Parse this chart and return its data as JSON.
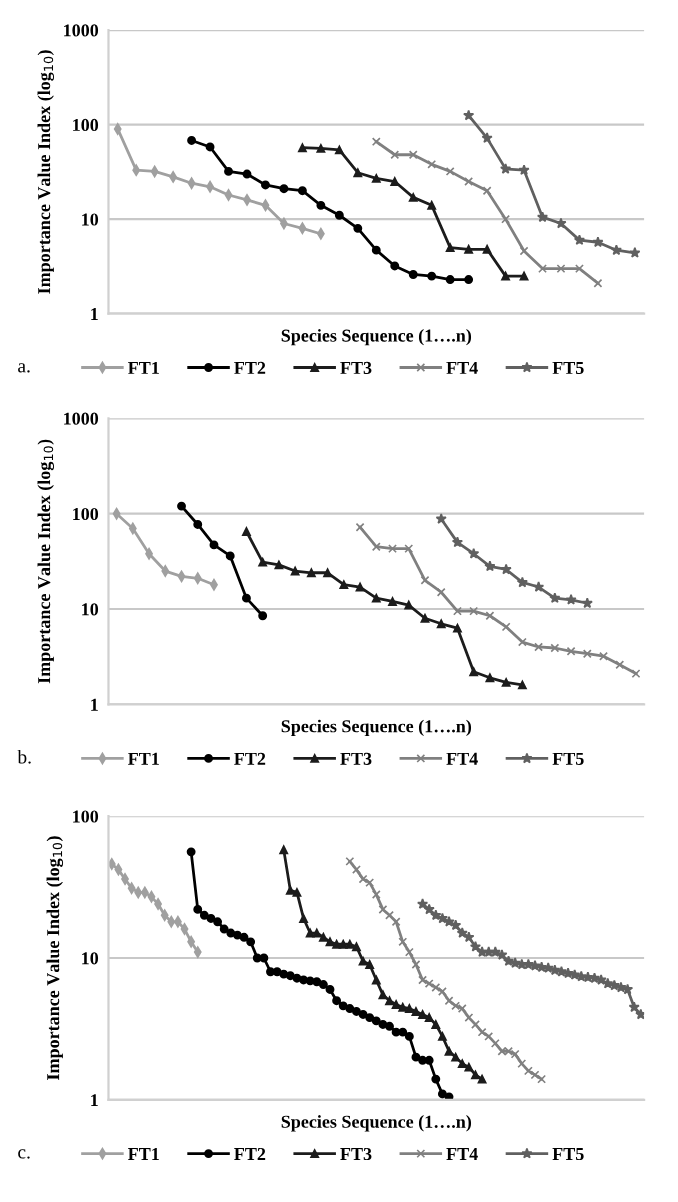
{
  "chart_data": [
    {
      "type": "line",
      "xlabel": "Species Sequence (1….n)",
      "ylabel": "Importance Value Index (log$_{10}$)",
      "annotations": [
        "a."
      ],
      "log": true,
      "grid": "y",
      "legend": "bottom",
      "categories": [
        null,
        null,
        null,
        null,
        null,
        null,
        null,
        null,
        null,
        null,
        null,
        null,
        null,
        null,
        null,
        null,
        null,
        null,
        null,
        null,
        null,
        null,
        null,
        null,
        null,
        null,
        null,
        null,
        null
      ],
      "ylim": [
        1,
        1000
      ],
      "yticks": [
        1,
        10,
        100,
        1000
      ],
      "series": [
        {
          "name": "FT1",
          "color": "#a0a0a0",
          "marker": "diamond",
          "values": [
            90,
            33,
            32,
            28,
            24,
            22,
            18,
            16,
            14,
            9,
            8,
            7,
            null,
            null,
            null,
            null,
            null,
            null,
            null,
            null,
            null,
            null,
            null,
            null,
            null,
            null,
            null,
            null,
            null
          ]
        },
        {
          "name": "FT2",
          "color": "#000000",
          "marker": "circle",
          "values": [
            null,
            null,
            null,
            null,
            68,
            58,
            32,
            30,
            23,
            21,
            20,
            14,
            11,
            8,
            4.7,
            3.2,
            2.6,
            2.5,
            2.3,
            2.3,
            null,
            null,
            null,
            null,
            null,
            null,
            null,
            null,
            null
          ]
        },
        {
          "name": "FT3",
          "color": "#1c1c1c",
          "marker": "triangle",
          "values": [
            null,
            null,
            null,
            null,
            null,
            null,
            null,
            null,
            null,
            null,
            57,
            56,
            54,
            31,
            27,
            25,
            17,
            14,
            5,
            4.8,
            4.8,
            2.5,
            2.5,
            null,
            null,
            null,
            null,
            null,
            null
          ]
        },
        {
          "name": "FT4",
          "color": "#808080",
          "marker": "cross",
          "values": [
            null,
            null,
            null,
            null,
            null,
            null,
            null,
            null,
            null,
            null,
            null,
            null,
            null,
            null,
            66,
            48,
            48,
            38,
            32,
            25,
            20,
            10,
            4.6,
            3,
            3,
            3,
            2.1,
            null,
            null
          ]
        },
        {
          "name": "FT5",
          "color": "#606060",
          "marker": "star",
          "values": [
            null,
            null,
            null,
            null,
            null,
            null,
            null,
            null,
            null,
            null,
            null,
            null,
            null,
            null,
            null,
            null,
            null,
            null,
            null,
            125,
            72,
            34,
            33,
            10.5,
            9,
            6,
            5.7,
            4.7,
            4.4
          ]
        }
      ]
    },
    {
      "type": "line",
      "xlabel": "Species Sequence (1….n)",
      "ylabel": "Importance Value Index (log$_{10}$)",
      "annotations": [
        "b."
      ],
      "log": true,
      "grid": "y",
      "legend": "bottom",
      "categories": [
        null,
        null,
        null,
        null,
        null,
        null,
        null,
        null,
        null,
        null,
        null,
        null,
        null,
        null,
        null,
        null,
        null,
        null,
        null,
        null,
        null,
        null,
        null,
        null,
        null,
        null,
        null,
        null,
        null,
        null,
        null,
        null,
        null
      ],
      "ylim": [
        1,
        1000
      ],
      "yticks": [
        1,
        10,
        100,
        1000
      ],
      "series": [
        {
          "name": "FT1",
          "color": "#a0a0a0",
          "marker": "diamond",
          "values": [
            100,
            70,
            38,
            25,
            22,
            21,
            18,
            null,
            null,
            null,
            null,
            null,
            null,
            null,
            null,
            null,
            null,
            null,
            null,
            null,
            null,
            null,
            null,
            null,
            null,
            null,
            null,
            null,
            null,
            null,
            null,
            null,
            null
          ]
        },
        {
          "name": "FT2",
          "color": "#000000",
          "marker": "circle",
          "values": [
            null,
            null,
            null,
            null,
            120,
            77,
            47,
            36,
            13,
            8.5,
            null,
            null,
            null,
            null,
            null,
            null,
            null,
            null,
            null,
            null,
            null,
            null,
            null,
            null,
            null,
            null,
            null,
            null,
            null,
            null,
            null,
            null,
            null
          ]
        },
        {
          "name": "FT3",
          "color": "#1c1c1c",
          "marker": "triangle",
          "values": [
            null,
            null,
            null,
            null,
            null,
            null,
            null,
            null,
            65,
            31,
            29,
            25,
            24,
            24,
            18,
            17,
            13,
            12,
            11,
            8,
            7,
            6.3,
            2.2,
            1.9,
            1.7,
            1.6,
            null,
            null,
            null,
            null,
            null,
            null,
            null
          ]
        },
        {
          "name": "FT4",
          "color": "#808080",
          "marker": "cross",
          "values": [
            null,
            null,
            null,
            null,
            null,
            null,
            null,
            null,
            null,
            null,
            null,
            null,
            null,
            null,
            null,
            72,
            45,
            43,
            43,
            20,
            15,
            9.5,
            9.5,
            8.5,
            6.5,
            4.5,
            4,
            3.9,
            3.6,
            3.4,
            3.2,
            2.6,
            2.1
          ]
        },
        {
          "name": "FT5",
          "color": "#606060",
          "marker": "star",
          "values": [
            null,
            null,
            null,
            null,
            null,
            null,
            null,
            null,
            null,
            null,
            null,
            null,
            null,
            null,
            null,
            null,
            null,
            null,
            null,
            null,
            88,
            50,
            38,
            28,
            26,
            19,
            17,
            13,
            12.5,
            11.5,
            null,
            null,
            null
          ]
        }
      ]
    },
    {
      "type": "line",
      "xlabel": "Species Sequence (1….n)",
      "ylabel": "Importance Value Index (log$_{10}$)",
      "annotations": [
        "c."
      ],
      "log": true,
      "grid": "y",
      "legend": "bottom",
      "categories": [
        null,
        null,
        null,
        null,
        null,
        null,
        null,
        null,
        null,
        null,
        null,
        null,
        null,
        null,
        null,
        null,
        null,
        null,
        null,
        null,
        null,
        null,
        null,
        null,
        null,
        null,
        null,
        null,
        null,
        null,
        null,
        null,
        null,
        null,
        null,
        null,
        null,
        null,
        null,
        null,
        null,
        null,
        null,
        null,
        null,
        null,
        null,
        null,
        null,
        null,
        null,
        null,
        null,
        null,
        null,
        null,
        null,
        null,
        null,
        null,
        null,
        null,
        null,
        null,
        null,
        null,
        null,
        null,
        null,
        null,
        null,
        null,
        null,
        null,
        null,
        null,
        null,
        null,
        null,
        null,
        null
      ],
      "ylim": [
        1,
        100
      ],
      "yticks": [
        1,
        10,
        100
      ],
      "series": [
        {
          "name": "FT1",
          "color": "#a0a0a0",
          "marker": "diamond",
          "values": [
            46,
            42,
            36,
            31,
            29,
            29,
            27,
            24,
            20,
            18,
            18,
            16,
            13,
            11,
            null,
            null,
            null,
            null,
            null,
            null,
            null,
            null,
            null,
            null,
            null,
            null,
            null,
            null,
            null,
            null,
            null,
            null,
            null,
            null,
            null,
            null,
            null,
            null,
            null,
            null,
            null,
            null,
            null,
            null,
            null,
            null,
            null,
            null,
            null,
            null,
            null,
            null,
            null,
            null,
            null,
            null,
            null,
            null,
            null,
            null,
            null,
            null,
            null,
            null,
            null,
            null,
            null,
            null,
            null,
            null,
            null,
            null,
            null,
            null,
            null,
            null,
            null,
            null,
            null,
            null,
            null
          ]
        },
        {
          "name": "FT2",
          "color": "#000000",
          "marker": "circle",
          "values": [
            null,
            null,
            null,
            null,
            null,
            null,
            null,
            null,
            null,
            null,
            null,
            null,
            56,
            22,
            20,
            19,
            18,
            16,
            15,
            14.5,
            14,
            13,
            10,
            10,
            8,
            8,
            7.7,
            7.5,
            7.2,
            7,
            6.9,
            6.8,
            6.5,
            6,
            5,
            4.6,
            4.4,
            4.2,
            4,
            3.8,
            3.6,
            3.4,
            3.3,
            3,
            3,
            2.8,
            2,
            1.9,
            1.9,
            1.4,
            1.1,
            1.05,
            null,
            null,
            null,
            null,
            null,
            null,
            null,
            null,
            null,
            null,
            null,
            null,
            null,
            null,
            null,
            null,
            null,
            null,
            null,
            null,
            null,
            null,
            null,
            null,
            null,
            null,
            null,
            null,
            null
          ]
        },
        {
          "name": "FT3",
          "color": "#1c1c1c",
          "marker": "triangle",
          "values": [
            null,
            null,
            null,
            null,
            null,
            null,
            null,
            null,
            null,
            null,
            null,
            null,
            null,
            null,
            null,
            null,
            null,
            null,
            null,
            null,
            null,
            null,
            null,
            null,
            null,
            null,
            58,
            30,
            29,
            19,
            15,
            15,
            14,
            13,
            12.5,
            12.5,
            12.5,
            12,
            9.5,
            9,
            7,
            5.5,
            5,
            4.7,
            4.5,
            4.4,
            4.2,
            4,
            3.8,
            3.4,
            2.8,
            2.2,
            2,
            1.8,
            1.7,
            1.5,
            1.4,
            null,
            null,
            null,
            null,
            null,
            null,
            null,
            null,
            null,
            null,
            null,
            null,
            null,
            null,
            null,
            null,
            null,
            null,
            null,
            null,
            null,
            null,
            null,
            null
          ]
        },
        {
          "name": "FT4",
          "color": "#808080",
          "marker": "cross",
          "values": [
            null,
            null,
            null,
            null,
            null,
            null,
            null,
            null,
            null,
            null,
            null,
            null,
            null,
            null,
            null,
            null,
            null,
            null,
            null,
            null,
            null,
            null,
            null,
            null,
            null,
            null,
            null,
            null,
            null,
            null,
            null,
            null,
            null,
            null,
            null,
            null,
            48,
            42,
            36,
            34,
            28,
            22,
            20,
            18,
            13,
            11,
            9,
            7,
            6.6,
            6.2,
            5.8,
            5,
            4.6,
            4.4,
            3.8,
            3.4,
            3,
            2.8,
            2.5,
            2.2,
            2.2,
            2.1,
            1.8,
            1.6,
            1.5,
            1.4,
            null,
            null,
            null,
            null,
            null,
            null,
            null,
            null,
            null,
            null,
            null,
            null,
            null,
            null,
            null
          ]
        },
        {
          "name": "FT5",
          "color": "#606060",
          "marker": "star",
          "values": [
            null,
            null,
            null,
            null,
            null,
            null,
            null,
            null,
            null,
            null,
            null,
            null,
            null,
            null,
            null,
            null,
            null,
            null,
            null,
            null,
            null,
            null,
            null,
            null,
            null,
            null,
            null,
            null,
            null,
            null,
            null,
            null,
            null,
            null,
            null,
            null,
            null,
            null,
            null,
            null,
            null,
            null,
            null,
            null,
            null,
            null,
            null,
            24,
            22,
            20,
            19,
            18,
            17,
            15,
            14,
            12,
            11,
            11,
            11,
            10.5,
            9.5,
            9.2,
            9,
            9,
            8.8,
            8.6,
            8.5,
            8.2,
            8,
            7.8,
            7.6,
            7.4,
            7.3,
            7.2,
            7,
            6.6,
            6.4,
            6.2,
            6,
            4.5,
            4
          ]
        }
      ]
    }
  ]
}
